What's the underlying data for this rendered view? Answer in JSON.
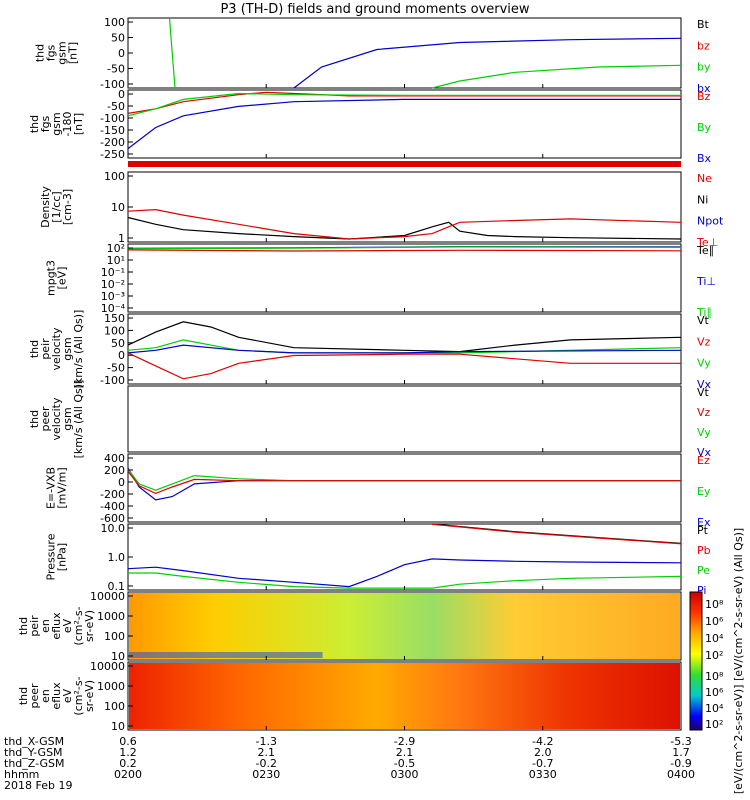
{
  "title": "P3 (TH-D) fields and ground moments overview",
  "date_label": "2018 Feb 19",
  "colors": {
    "black": "#000000",
    "red": "#e00000",
    "green": "#00d000",
    "blue": "#0000d0"
  },
  "chart_data": [
    {
      "type": "line",
      "id": "fgs",
      "ylabel": [
        "thd",
        "fgs",
        "gsm",
        "[nT]"
      ],
      "ylim": [
        -100,
        100
      ],
      "yticks": [
        "100",
        "50",
        "0",
        "-50",
        "-100"
      ],
      "legend": [
        {
          "label": "Bt",
          "color": "black"
        },
        {
          "label": "bz",
          "color": "red"
        },
        {
          "label": "by",
          "color": "green"
        },
        {
          "label": "bx",
          "color": "blue"
        }
      ],
      "series": [
        {
          "name": "by",
          "color": "green",
          "x": [
            0.075,
            0.08,
            0.085
          ],
          "y": [
            100,
            0,
            -100
          ]
        },
        {
          "name": "bx",
          "color": "blue",
          "x": [
            0.3,
            0.35,
            0.45,
            0.6,
            0.8,
            1.0
          ],
          "y": [
            -100,
            -40,
            10,
            30,
            38,
            42
          ]
        },
        {
          "name": "by",
          "color": "green",
          "x": [
            0.55,
            0.6,
            0.7,
            0.85,
            1.0
          ],
          "y": [
            -100,
            -80,
            -55,
            -40,
            -35
          ]
        }
      ]
    },
    {
      "type": "line",
      "id": "fge",
      "ylabel": [
        "thd",
        "fgs",
        "gsm",
        "-180",
        "[nT]"
      ],
      "ylim": [
        -270,
        20
      ],
      "yticks": [
        "0",
        "-50",
        "-100",
        "-150",
        "-200",
        "-250"
      ],
      "legend": [
        {
          "label": "Bz",
          "color": "red"
        },
        {
          "label": "By",
          "color": "green"
        },
        {
          "label": "Bx",
          "color": "blue"
        }
      ],
      "series": [
        {
          "name": "Bz",
          "color": "red",
          "x": [
            0,
            0.05,
            0.1,
            0.2,
            0.25,
            0.3,
            0.4,
            0.5,
            1.0
          ],
          "y": [
            -80,
            -60,
            -30,
            0,
            10,
            5,
            -5,
            -5,
            -5
          ]
        },
        {
          "name": "By",
          "color": "green",
          "x": [
            0,
            0.05,
            0.1,
            0.2,
            0.3,
            0.5,
            1.0
          ],
          "y": [
            -90,
            -60,
            -20,
            5,
            0,
            -3,
            -3
          ]
        },
        {
          "name": "Bx",
          "color": "blue",
          "x": [
            0,
            0.05,
            0.1,
            0.2,
            0.3,
            0.5,
            1.0
          ],
          "y": [
            -230,
            -140,
            -90,
            -50,
            -30,
            -20,
            -20
          ]
        }
      ]
    },
    {
      "type": "line",
      "id": "density",
      "ylabel": [
        "Density",
        "[1/cc]",
        "[cm-3]"
      ],
      "log": true,
      "ylim": [
        0.8,
        150
      ],
      "yticks": [
        "100",
        "10",
        "1"
      ],
      "legend": [
        {
          "label": "Ne",
          "color": "red"
        },
        {
          "label": "Ni",
          "color": "black"
        },
        {
          "label": "Npot",
          "color": "blue"
        },
        {
          "label": "Te⊥",
          "color": "red"
        }
      ],
      "series": [
        {
          "name": "Ni",
          "color": "black",
          "x": [
            0,
            0.05,
            0.1,
            0.2,
            0.3,
            0.4,
            0.5,
            0.55,
            0.58,
            0.6,
            0.65,
            0.7,
            0.8,
            1.0
          ],
          "y": [
            5,
            3,
            2,
            1.5,
            1.2,
            1.0,
            1.3,
            2.5,
            3.5,
            1.8,
            1.3,
            1.2,
            1.1,
            1.0
          ]
        },
        {
          "name": "Ne",
          "color": "red",
          "x": [
            0,
            0.05,
            0.1,
            0.2,
            0.3,
            0.4,
            0.5,
            0.55,
            0.58,
            0.6,
            0.7,
            0.8,
            1.0
          ],
          "y": [
            8,
            9,
            6,
            3,
            1.5,
            1.0,
            1.2,
            1.5,
            2.5,
            3.5,
            4,
            4.5,
            3.5
          ]
        }
      ]
    },
    {
      "type": "line",
      "id": "temp",
      "ylabel": [
        "mpgt3",
        "[eV]"
      ],
      "log": true,
      "ylim": [
        1e-05,
        1000.0
      ],
      "yticks": [
        "10²",
        "10¹",
        "10⁻¹",
        "10⁻²",
        "10⁻³",
        "10⁻⁴"
      ],
      "legend": [
        {
          "label": "Te∥",
          "color": "black"
        },
        {
          "label": "Ti⊥",
          "color": "blue"
        },
        {
          "label": "Ti∥",
          "color": "green"
        }
      ],
      "series": [
        {
          "name": "Ti⊥",
          "color": "blue",
          "x": [
            0,
            0.3,
            0.6,
            1.0
          ],
          "y": [
            300,
            350,
            500,
            450
          ]
        },
        {
          "name": "Ti∥",
          "color": "green",
          "x": [
            0,
            0.3,
            0.6,
            1.0
          ],
          "y": [
            280,
            320,
            450,
            400
          ]
        },
        {
          "name": "Te⊥",
          "color": "red",
          "x": [
            0,
            0.3,
            0.6,
            1.0
          ],
          "y": [
            200,
            150,
            180,
            160
          ]
        }
      ]
    },
    {
      "type": "line",
      "id": "peir",
      "ylabel": [
        "thd",
        "peir",
        "velocity",
        "gsm",
        "[km/s (All Qs)]"
      ],
      "ylim": [
        -120,
        150
      ],
      "yticks": [
        "150",
        "100",
        "50",
        "0",
        "-50",
        "-100"
      ],
      "legend": [
        {
          "label": "Vt",
          "color": "black"
        },
        {
          "label": "Vz",
          "color": "red"
        },
        {
          "label": "Vy",
          "color": "green"
        },
        {
          "label": "Vx",
          "color": "blue"
        }
      ],
      "series": [
        {
          "name": "Vt",
          "color": "black",
          "x": [
            0,
            0.05,
            0.1,
            0.15,
            0.2,
            0.3,
            0.5,
            0.6,
            0.7,
            0.8,
            1.0
          ],
          "y": [
            30,
            80,
            120,
            100,
            60,
            20,
            10,
            5,
            30,
            50,
            60
          ]
        },
        {
          "name": "Vy",
          "color": "green",
          "x": [
            0,
            0.05,
            0.1,
            0.2,
            0.3,
            0.5,
            0.6,
            1.0
          ],
          "y": [
            10,
            20,
            50,
            10,
            0,
            0,
            0,
            20
          ]
        },
        {
          "name": "Vx",
          "color": "blue",
          "x": [
            0,
            0.05,
            0.1,
            0.2,
            0.3,
            0.5,
            0.6,
            1.0
          ],
          "y": [
            0,
            10,
            30,
            10,
            0,
            0,
            5,
            10
          ]
        },
        {
          "name": "Vz",
          "color": "red",
          "x": [
            0,
            0.05,
            0.1,
            0.15,
            0.2,
            0.3,
            0.5,
            0.6,
            0.8,
            1.0
          ],
          "y": [
            0,
            -50,
            -100,
            -80,
            -40,
            -10,
            -5,
            -5,
            -40,
            -40
          ]
        }
      ]
    },
    {
      "type": "line",
      "id": "peer",
      "ylabel": [
        "thd",
        "peer",
        "velocity",
        "gsm",
        "[km/s (All Qs)]"
      ],
      "ylim": [
        -100,
        100
      ],
      "yticks": [],
      "legend": [
        {
          "label": "Vt",
          "color": "black"
        },
        {
          "label": "Vz",
          "color": "red"
        },
        {
          "label": "Vy",
          "color": "green"
        },
        {
          "label": "Vx",
          "color": "blue"
        }
      ],
      "series": []
    },
    {
      "type": "line",
      "id": "exb",
      "ylabel": [
        "E=-VXB",
        "[mV/m]"
      ],
      "ylim": [
        -650,
        420
      ],
      "yticks": [
        "400",
        "200",
        "0",
        "-200",
        "-400",
        "-600"
      ],
      "legend": [
        {
          "label": "Ez",
          "color": "red"
        },
        {
          "label": "Ey",
          "color": "green"
        },
        {
          "label": "Ex",
          "color": "blue"
        }
      ],
      "series": [
        {
          "name": "Ex",
          "color": "blue",
          "x": [
            0,
            0.02,
            0.05,
            0.08,
            0.12,
            0.2,
            0.3,
            0.4,
            1.0
          ],
          "y": [
            200,
            -100,
            -300,
            -250,
            -50,
            0,
            0,
            0,
            0
          ]
        },
        {
          "name": "Ey",
          "color": "green",
          "x": [
            0,
            0.02,
            0.05,
            0.08,
            0.12,
            0.2,
            0.3,
            0.4,
            1.0
          ],
          "y": [
            180,
            -50,
            -150,
            -50,
            80,
            30,
            0,
            0,
            0
          ]
        },
        {
          "name": "Ez",
          "color": "red",
          "x": [
            0,
            0.02,
            0.05,
            0.08,
            0.12,
            0.2,
            0.3,
            0.4,
            1.0
          ],
          "y": [
            150,
            -80,
            -200,
            -100,
            20,
            0,
            0,
            0,
            0
          ]
        }
      ]
    },
    {
      "type": "line",
      "id": "pressure",
      "ylabel": [
        "Pressure",
        "[nPa]"
      ],
      "log": true,
      "ylim": [
        0.02,
        50
      ],
      "yticks": [
        "10.0",
        "1.0",
        "0.1"
      ],
      "legend": [
        {
          "label": "Pt",
          "color": "black"
        },
        {
          "label": "Pb",
          "color": "red"
        },
        {
          "label": "Pe",
          "color": "green"
        },
        {
          "label": "Pi",
          "color": "blue"
        }
      ],
      "series": [
        {
          "name": "Pt",
          "color": "black",
          "x": [
            0.55,
            0.7,
            0.85,
            1.0
          ],
          "y": [
            50,
            20,
            10,
            5
          ]
        },
        {
          "name": "Pb",
          "color": "red",
          "x": [
            0.55,
            0.7,
            0.85,
            1.0
          ],
          "y": [
            48,
            19,
            9.5,
            4.8
          ]
        },
        {
          "name": "Pi",
          "color": "blue",
          "x": [
            0,
            0.05,
            0.1,
            0.2,
            0.3,
            0.4,
            0.45,
            0.5,
            0.55,
            0.6,
            0.7,
            0.8,
            1.0
          ],
          "y": [
            0.25,
            0.3,
            0.2,
            0.08,
            0.05,
            0.03,
            0.1,
            0.4,
            0.8,
            0.7,
            0.6,
            0.55,
            0.5
          ]
        },
        {
          "name": "Pe",
          "color": "green",
          "x": [
            0,
            0.05,
            0.1,
            0.2,
            0.3,
            0.4,
            0.5,
            0.55,
            0.6,
            0.7,
            0.8,
            1.0
          ],
          "y": [
            0.15,
            0.15,
            0.1,
            0.05,
            0.03,
            0.025,
            0.025,
            0.025,
            0.04,
            0.06,
            0.08,
            0.1
          ]
        }
      ]
    },
    {
      "type": "heatmap",
      "id": "peir_en",
      "ylabel": [
        "thd",
        "peir",
        "en",
        "eflux",
        "eV",
        "(cm²-s-",
        "sr-eV)"
      ],
      "yticks": [
        "10000",
        "1000",
        "100",
        "10"
      ],
      "colorbar_ticks": [
        "10⁸",
        "10⁶",
        "10⁴",
        "10²"
      ]
    },
    {
      "type": "heatmap",
      "id": "peer_en",
      "ylabel": [
        "thd",
        "peer",
        "en",
        "eflux",
        "eV",
        "(cm²-s-",
        "sr-eV)"
      ],
      "yticks": [
        "10000",
        "1000",
        "100",
        "10"
      ],
      "colorbar_ticks": [
        "10⁸",
        "10⁶",
        "10⁴",
        "10²"
      ]
    }
  ],
  "colorbar_label": "[eV/(cm^2-s-sr-eV)] [eV/(cm^2-s-sr-eV) (All Qs)]",
  "footer": {
    "rows": [
      {
        "label": "thd_X-GSM",
        "values": [
          "0.6",
          "-1.3",
          "-2.9",
          "-4.2",
          "-5.3"
        ]
      },
      {
        "label": "thd_Y-GSM",
        "values": [
          "1.2",
          "2.1",
          "2.1",
          "2.0",
          "1.7"
        ]
      },
      {
        "label": "thd_Z-GSM",
        "values": [
          "0.2",
          "-0.2",
          "-0.5",
          "-0.7",
          "-0.9"
        ]
      },
      {
        "label": "hhmm",
        "values": [
          "0200",
          "0230",
          "0300",
          "0330",
          "0400"
        ]
      }
    ]
  }
}
